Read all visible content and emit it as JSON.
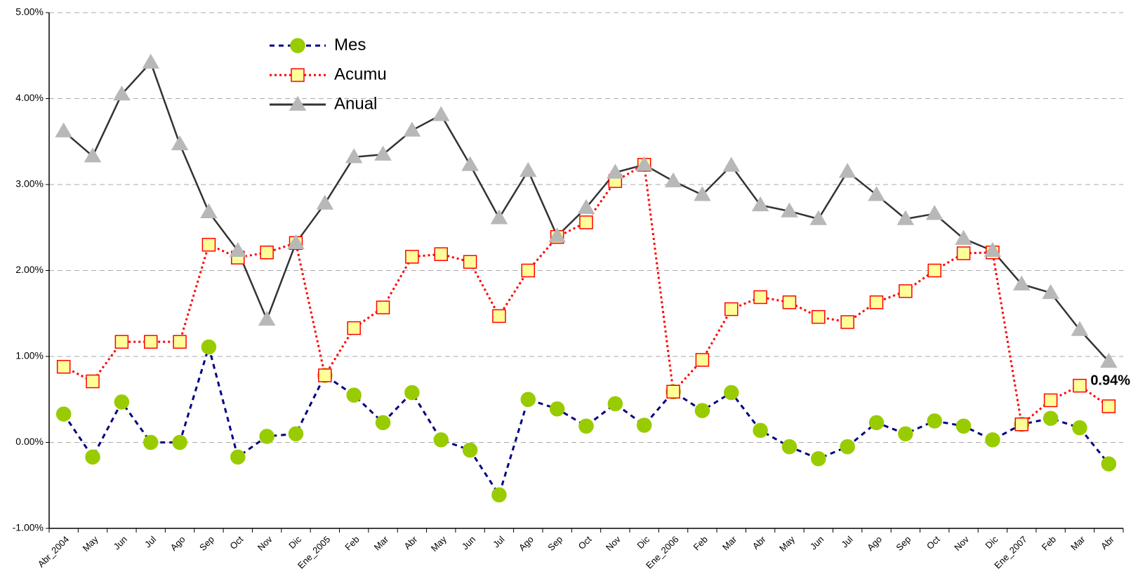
{
  "chart_data": {
    "type": "line",
    "categories": [
      "Abr_2004",
      "May",
      "Jun",
      "Jul",
      "Ago",
      "Sep",
      "Oct",
      "Nov",
      "Dic",
      "Ene_2005",
      "Feb",
      "Mar",
      "Abr",
      "May",
      "Jun",
      "Jul",
      "Ago",
      "Sep",
      "Oct",
      "Nov",
      "Dic",
      "Ene_2006",
      "Feb",
      "Mar",
      "Abr",
      "May",
      "Jun",
      "Jul",
      "Ago",
      "Sep",
      "Oct",
      "Nov",
      "Dic",
      "Ene_2007",
      "Feb",
      "Mar",
      "Abr"
    ],
    "series": [
      {
        "name": "Mes",
        "color": "#000080",
        "dash": "dashed",
        "marker": "circle",
        "marker_fill": "#99cc00",
        "marker_stroke": "#99cc00",
        "values": [
          0.33,
          -0.17,
          0.47,
          0.0,
          0.0,
          1.11,
          -0.17,
          0.07,
          0.1,
          0.78,
          0.55,
          0.23,
          0.58,
          0.03,
          -0.09,
          -0.61,
          0.5,
          0.39,
          0.19,
          0.45,
          0.2,
          0.59,
          0.37,
          0.58,
          0.14,
          -0.05,
          -0.19,
          -0.05,
          0.23,
          0.1,
          0.25,
          0.19,
          0.03,
          0.21,
          0.28,
          0.17,
          -0.25
        ]
      },
      {
        "name": "Acumu",
        "color": "#ff0000",
        "dash": "dotted",
        "marker": "square",
        "marker_fill": "#ffff99",
        "marker_stroke": "#ff0000",
        "values": [
          0.88,
          0.71,
          1.17,
          1.17,
          1.17,
          2.3,
          2.15,
          2.21,
          2.32,
          0.78,
          1.33,
          1.57,
          2.16,
          2.19,
          2.1,
          1.47,
          2.0,
          2.39,
          2.56,
          3.04,
          3.23,
          0.59,
          0.96,
          1.55,
          1.69,
          1.63,
          1.46,
          1.4,
          1.63,
          1.76,
          2.0,
          2.2,
          2.21,
          0.21,
          0.49,
          0.66,
          0.42
        ]
      },
      {
        "name": "Anual",
        "color": "#333333",
        "dash": "solid",
        "marker": "triangle",
        "marker_fill": "#b8b8b8",
        "marker_stroke": "#b8b8b8",
        "values": [
          3.62,
          3.33,
          4.05,
          4.42,
          3.47,
          2.68,
          2.23,
          1.43,
          2.32,
          2.78,
          3.32,
          3.35,
          3.63,
          3.81,
          3.23,
          2.61,
          3.16,
          2.4,
          2.73,
          3.14,
          3.23,
          3.04,
          2.88,
          3.22,
          2.76,
          2.69,
          2.6,
          3.15,
          2.88,
          2.6,
          2.66,
          2.37,
          2.23,
          1.84,
          1.74,
          1.31,
          0.94
        ],
        "value_labels": [
          null,
          null,
          null,
          null,
          null,
          null,
          null,
          null,
          null,
          null,
          null,
          null,
          null,
          null,
          null,
          null,
          null,
          null,
          null,
          null,
          null,
          null,
          null,
          null,
          null,
          null,
          null,
          null,
          null,
          null,
          null,
          null,
          null,
          null,
          null,
          null,
          "0.94%"
        ]
      }
    ],
    "ylim": [
      -1,
      5
    ],
    "yticks": [
      {
        "value": -1,
        "label": "-1.00%"
      },
      {
        "value": 0,
        "label": "0.00%"
      },
      {
        "value": 1,
        "label": "1.00%"
      },
      {
        "value": 2,
        "label": "2.00%"
      },
      {
        "value": 3,
        "label": "3.00%"
      },
      {
        "value": 4,
        "label": "4.00%"
      },
      {
        "value": 5,
        "label": "5.00%"
      }
    ],
    "grid": true,
    "legend": "top-left"
  }
}
